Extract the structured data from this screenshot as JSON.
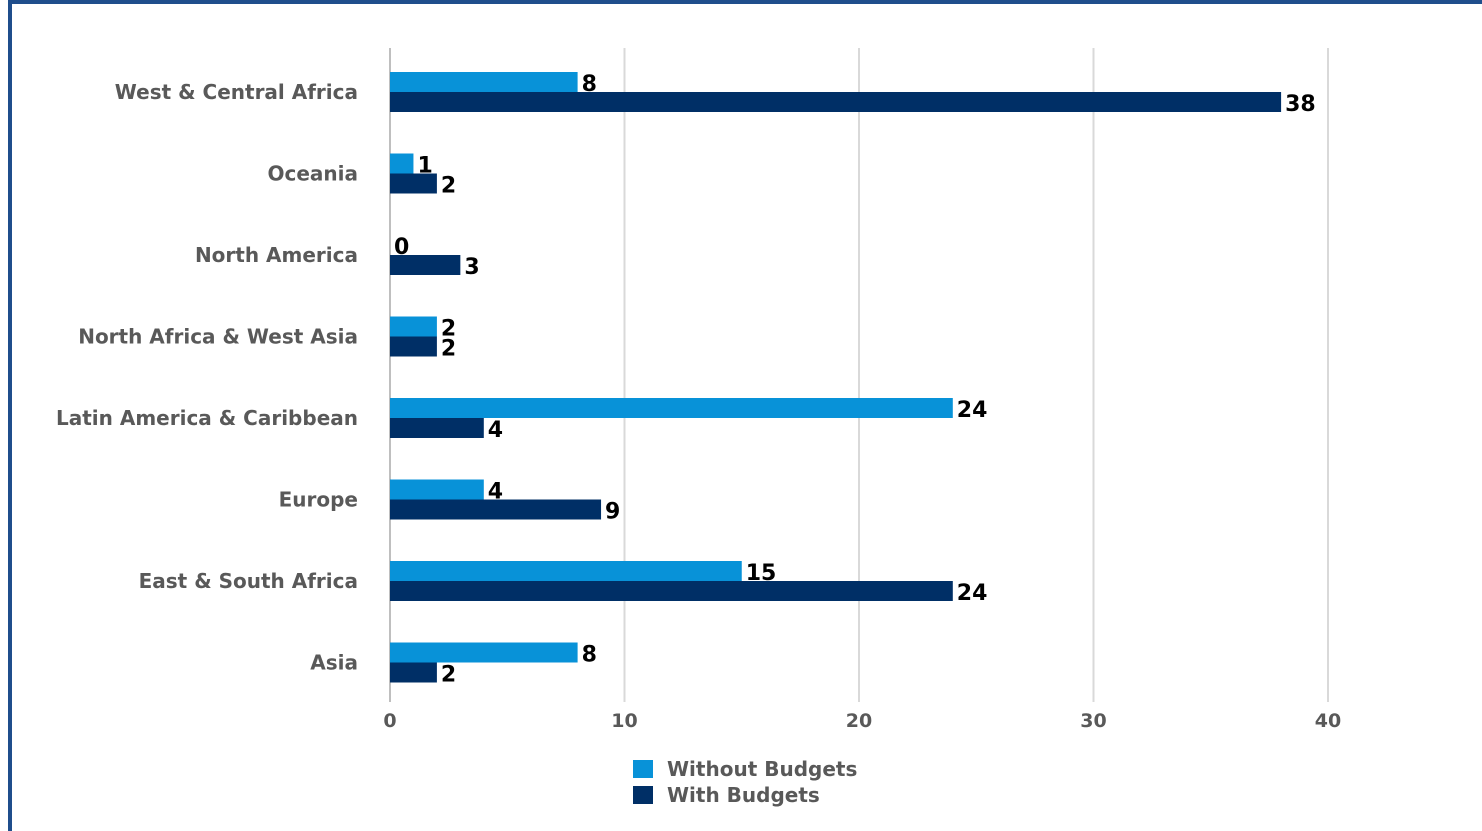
{
  "chart_data": {
    "type": "bar",
    "orientation": "horizontal",
    "categories": [
      "West & Central Africa",
      "Oceania",
      "North America",
      "North Africa & West Asia",
      "Latin America & Caribbean",
      "Europe",
      "East & South Africa",
      "Asia"
    ],
    "series": [
      {
        "name": "Without Budgets",
        "values": [
          8,
          1,
          0,
          2,
          24,
          4,
          15,
          8
        ],
        "color": "#0892d8"
      },
      {
        "name": "With Budgets",
        "values": [
          38,
          2,
          3,
          2,
          4,
          9,
          24,
          2
        ],
        "color": "#002f66"
      }
    ],
    "xlim": [
      0,
      40
    ],
    "xticks": [
      "0",
      "10",
      "20",
      "30",
      "40"
    ],
    "grid": "vertical",
    "legend_position": "bottom",
    "frame_color": "#1f4e8c"
  }
}
